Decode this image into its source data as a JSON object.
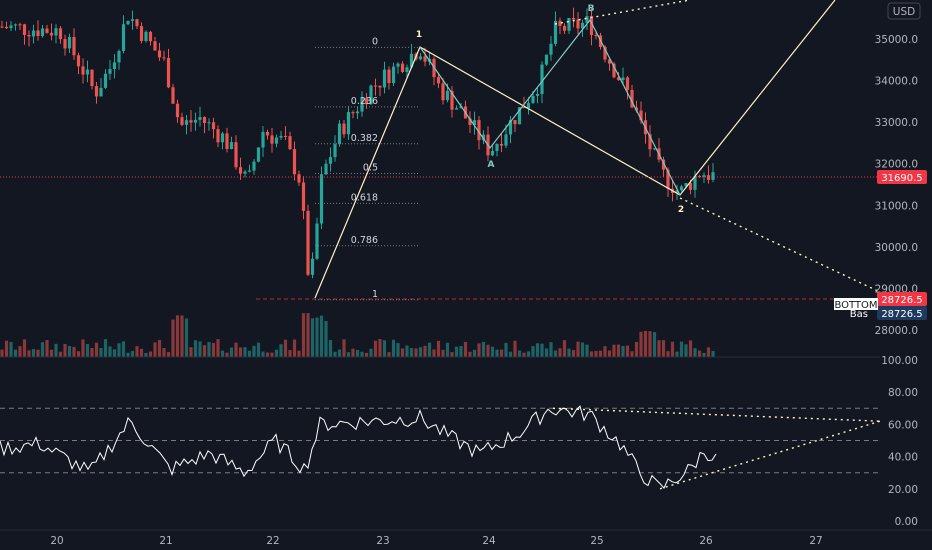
{
  "currency": "USD",
  "colors": {
    "background": "#131722",
    "bull": "#26a69a",
    "bear": "#ef5350",
    "price_line": "#f23645",
    "rsi": "#ffffff",
    "fib": "#787b86",
    "wave_primary": "#fff3c4",
    "wave_minor": "#80cbc4",
    "grid_text": "#b2b5be"
  },
  "price_axis": {
    "labels": [
      "35000.0",
      "34000.0",
      "33000.0",
      "32000.0",
      "31000.0",
      "30000.0",
      "29000.0",
      "28000.0"
    ]
  },
  "rsi_axis": {
    "labels": [
      "100.00",
      "80.00",
      "60.00",
      "40.00",
      "20.00",
      "0.00"
    ],
    "levels": [
      70,
      50,
      30
    ]
  },
  "time_axis": {
    "labels": [
      "20",
      "21",
      "22",
      "23",
      "24",
      "25",
      "26",
      "27"
    ]
  },
  "current_price": "31690.5",
  "bottom": {
    "label": "BOTTOM",
    "price": "28726.5",
    "base_label": "Bas",
    "base_price": "28726.5"
  },
  "fib_levels": [
    "0",
    "0.236",
    "0.382",
    "0.5",
    "0.618",
    "0.786",
    "1"
  ],
  "wave_labels": {
    "one": "1",
    "two": "2",
    "a": "A",
    "b": "B"
  }
}
